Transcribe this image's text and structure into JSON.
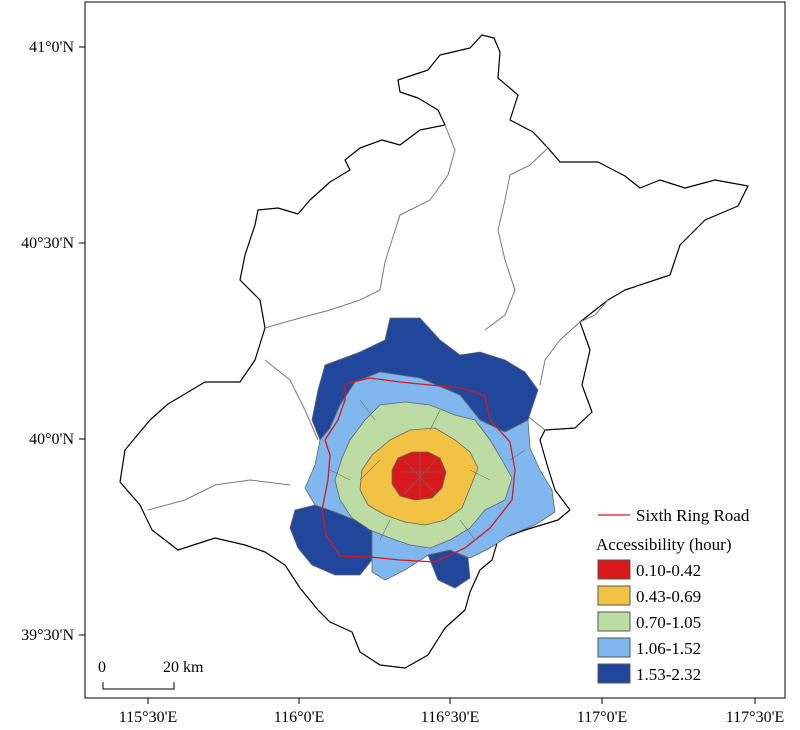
{
  "axes": {
    "lat_ticks": [
      "41°0'N",
      "40°30'N",
      "40°0'N",
      "39°30'N"
    ],
    "lon_ticks": [
      "115°30'E",
      "116°0'E",
      "116°30'E",
      "117°0'E",
      "117°30'E"
    ]
  },
  "legend": {
    "ring_road_label": "Sixth Ring Road",
    "title": "Accessibility (hour)",
    "classes": [
      {
        "label": "0.10-0.42",
        "color": "#d7191c"
      },
      {
        "label": "0.43-0.69",
        "color": "#f2c245"
      },
      {
        "label": "0.70-1.05",
        "color": "#bcdca4"
      },
      {
        "label": "1.06-1.52",
        "color": "#7fb7ee"
      },
      {
        "label": "1.53-2.32",
        "color": "#21479c"
      }
    ],
    "ring_color": "#d7191c"
  },
  "scale_bar": {
    "start_label": "0",
    "end_label": "20 km"
  }
}
